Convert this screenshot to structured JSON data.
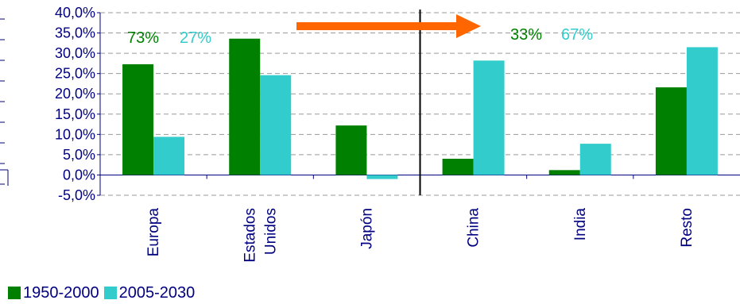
{
  "chart_data": {
    "type": "bar",
    "categories": [
      [
        "Europa"
      ],
      [
        "Estados",
        "Unidos"
      ],
      [
        "Japón"
      ],
      [
        "China"
      ],
      [
        "India"
      ],
      [
        "Resto"
      ]
    ],
    "series": [
      {
        "name": "1950-2000",
        "color": "#008000",
        "values": [
          27.3,
          33.6,
          12.2,
          4.0,
          1.2,
          21.6
        ]
      },
      {
        "name": "2005-2030",
        "color": "#33CCCC",
        "values": [
          9.4,
          24.6,
          -1.0,
          28.2,
          7.7,
          31.5
        ]
      }
    ],
    "ylim": [
      -5,
      40
    ],
    "yticks": [
      40,
      35,
      30,
      25,
      20,
      15,
      10,
      5,
      0,
      -5
    ],
    "ytick_labels": [
      "40,0%",
      "35,0%",
      "30,0%",
      "25,0%",
      "20,0%",
      "15,0%",
      "10,0%",
      "5,0%",
      "0,0%",
      "-5,0%"
    ],
    "grid": true,
    "legend_position": "bottom-left",
    "annotations": {
      "left_group": {
        "share_1950": "73%",
        "share_2005": "27%"
      },
      "right_group": {
        "share_1950": "33%",
        "share_2005": "67%"
      },
      "arrow": "orange arrow pointing right"
    },
    "divider_after_category_index": 2
  }
}
